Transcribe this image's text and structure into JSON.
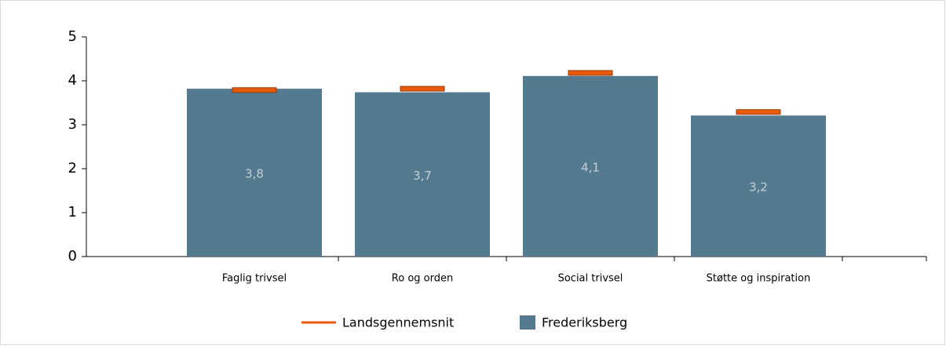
{
  "chart_data": {
    "type": "bar",
    "categories": [
      "Faglig trivsel",
      "Ro og orden",
      "Social trivsel",
      "Støtte og inspiration"
    ],
    "series": [
      {
        "name": "Landsgennemsnit",
        "color": "#e85a0c",
        "values": [
          3.79,
          3.82,
          4.18,
          3.29
        ]
      },
      {
        "name": "Frederiksberg",
        "color": "#537a8f",
        "values": [
          3.82,
          3.74,
          4.11,
          3.21
        ],
        "value_labels": [
          "3,8",
          "3,7",
          "4,1",
          "3,2"
        ]
      }
    ],
    "ylim": [
      0,
      5
    ],
    "yticks": [
      0,
      1,
      2,
      3,
      4,
      5
    ]
  }
}
